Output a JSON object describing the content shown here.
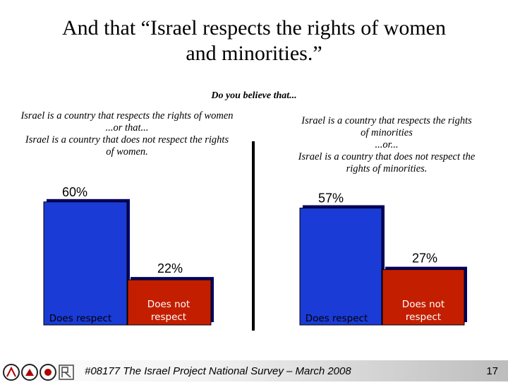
{
  "slide": {
    "title_line1": "And that “Israel respects the rights of women",
    "title_line2": "and minorities.”",
    "question": "Do you believe that...",
    "footer": "#08177 The Israel Project National Survey – March 2008",
    "page_number": "17"
  },
  "left_panel": {
    "lines": [
      "Israel is a country that respects the rights of women",
      "...or that...",
      "Israel is a country that does not respect the rights",
      "of women."
    ]
  },
  "right_panel": {
    "lines": [
      "Israel is a country that respects the rights",
      "of minorities",
      "...or...",
      "Israel is a country that does not respect the",
      "rights of minorities."
    ]
  },
  "colors": {
    "respect": "#1a3bd6",
    "not_respect": "#c41e00",
    "shadow": "#000066"
  },
  "chart_data": [
    {
      "type": "bar",
      "title": "Rights of women",
      "categories": [
        "Does respect",
        "Does not respect"
      ],
      "category_lines": [
        [
          "Does respect"
        ],
        [
          "Does not",
          "respect"
        ]
      ],
      "values": [
        60,
        22
      ],
      "value_labels": [
        "60%",
        "22%"
      ],
      "ylim": [
        0,
        62
      ]
    },
    {
      "type": "bar",
      "title": "Rights of minorities",
      "categories": [
        "Does respect",
        "Does not respect"
      ],
      "category_lines": [
        [
          "Does respect"
        ],
        [
          "Does not",
          "respect"
        ]
      ],
      "values": [
        57,
        27
      ],
      "value_labels": [
        "57%",
        "27%"
      ],
      "ylim": [
        0,
        62
      ]
    }
  ]
}
